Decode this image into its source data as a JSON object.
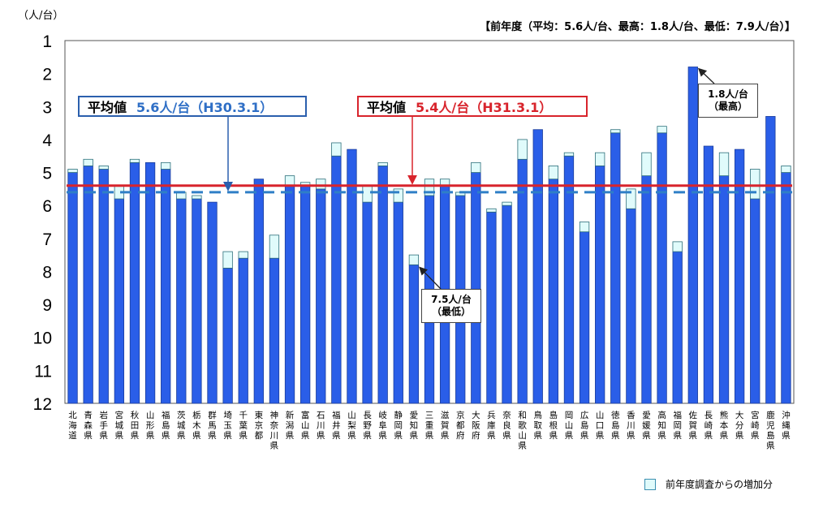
{
  "chart_data": {
    "type": "bar",
    "unit_label": "（人/台）",
    "prev_note": "【前年度（平均：5.6人/台、最高：1.8人/台、最低：7.9人/台）】",
    "y_axis": {
      "inverted": true,
      "range": [
        1,
        12
      ],
      "ticks": [
        "1",
        "2",
        "3",
        "4",
        "5",
        "6",
        "7",
        "8",
        "9",
        "10",
        "11",
        "12"
      ]
    },
    "grid": false,
    "categories": [
      "北海道",
      "青森県",
      "岩手県",
      "宮城県",
      "秋田県",
      "山形県",
      "福島県",
      "茨城県",
      "栃木県",
      "群馬県",
      "埼玉県",
      "千葉県",
      "東京都",
      "神奈川県",
      "新潟県",
      "富山県",
      "石川県",
      "福井県",
      "山梨県",
      "長野県",
      "岐阜県",
      "静岡県",
      "愛知県",
      "三重県",
      "滋賀県",
      "京都府",
      "大阪府",
      "兵庫県",
      "奈良県",
      "和歌山県",
      "鳥取県",
      "島根県",
      "岡山県",
      "広島県",
      "山口県",
      "徳島県",
      "香川県",
      "愛媛県",
      "高知県",
      "福岡県",
      "佐賀県",
      "長崎県",
      "熊本県",
      "大分県",
      "宮崎県",
      "鹿児島県",
      "沖縄県"
    ],
    "series": [
      {
        "name": "",
        "color": "#2a5ee8",
        "values": [
          5.0,
          4.8,
          4.9,
          5.8,
          4.7,
          4.7,
          4.9,
          5.8,
          5.8,
          5.9,
          7.9,
          7.6,
          5.2,
          7.6,
          5.4,
          5.4,
          5.5,
          4.5,
          4.3,
          5.9,
          4.8,
          5.9,
          7.8,
          5.7,
          5.4,
          5.7,
          5.0,
          6.2,
          6.0,
          4.6,
          3.7,
          5.2,
          4.5,
          6.8,
          4.8,
          3.8,
          6.1,
          5.1,
          3.8,
          7.4,
          1.8,
          4.2,
          5.1,
          4.3,
          5.8,
          3.3,
          5.0
        ]
      },
      {
        "name": "前年度調査からの増加分",
        "color": "#e0fbfb",
        "values": [
          4.9,
          4.6,
          4.8,
          5.4,
          4.6,
          4.7,
          4.7,
          5.6,
          5.7,
          5.9,
          7.4,
          7.4,
          5.2,
          6.9,
          5.1,
          5.3,
          5.2,
          4.1,
          4.3,
          5.4,
          4.7,
          5.5,
          7.5,
          5.2,
          5.2,
          5.6,
          4.7,
          6.1,
          5.9,
          4.0,
          3.7,
          4.8,
          4.4,
          6.5,
          4.4,
          3.7,
          5.5,
          4.4,
          3.6,
          7.1,
          1.8,
          4.2,
          4.4,
          4.3,
          4.9,
          3.3,
          4.8
        ]
      }
    ],
    "reference_lines": [
      {
        "label": "平均値",
        "value_text": "5.6人/台（H30.3.1）",
        "value": 5.6,
        "style": "dashed",
        "color": "#2f7fc6"
      },
      {
        "label": "平均値",
        "value_text": "5.4人/台（H31.3.1）",
        "value": 5.4,
        "style": "solid",
        "color": "#d8242c"
      }
    ],
    "annotations": [
      {
        "text1": "1.8人/台",
        "text2": "（最高）",
        "category": "佐賀県"
      },
      {
        "text1": "7.5人/台",
        "text2": "（最低）",
        "category": "愛知県"
      }
    ],
    "legend": {
      "label": "前年度調査からの増加分",
      "position": "bottom-right"
    }
  }
}
